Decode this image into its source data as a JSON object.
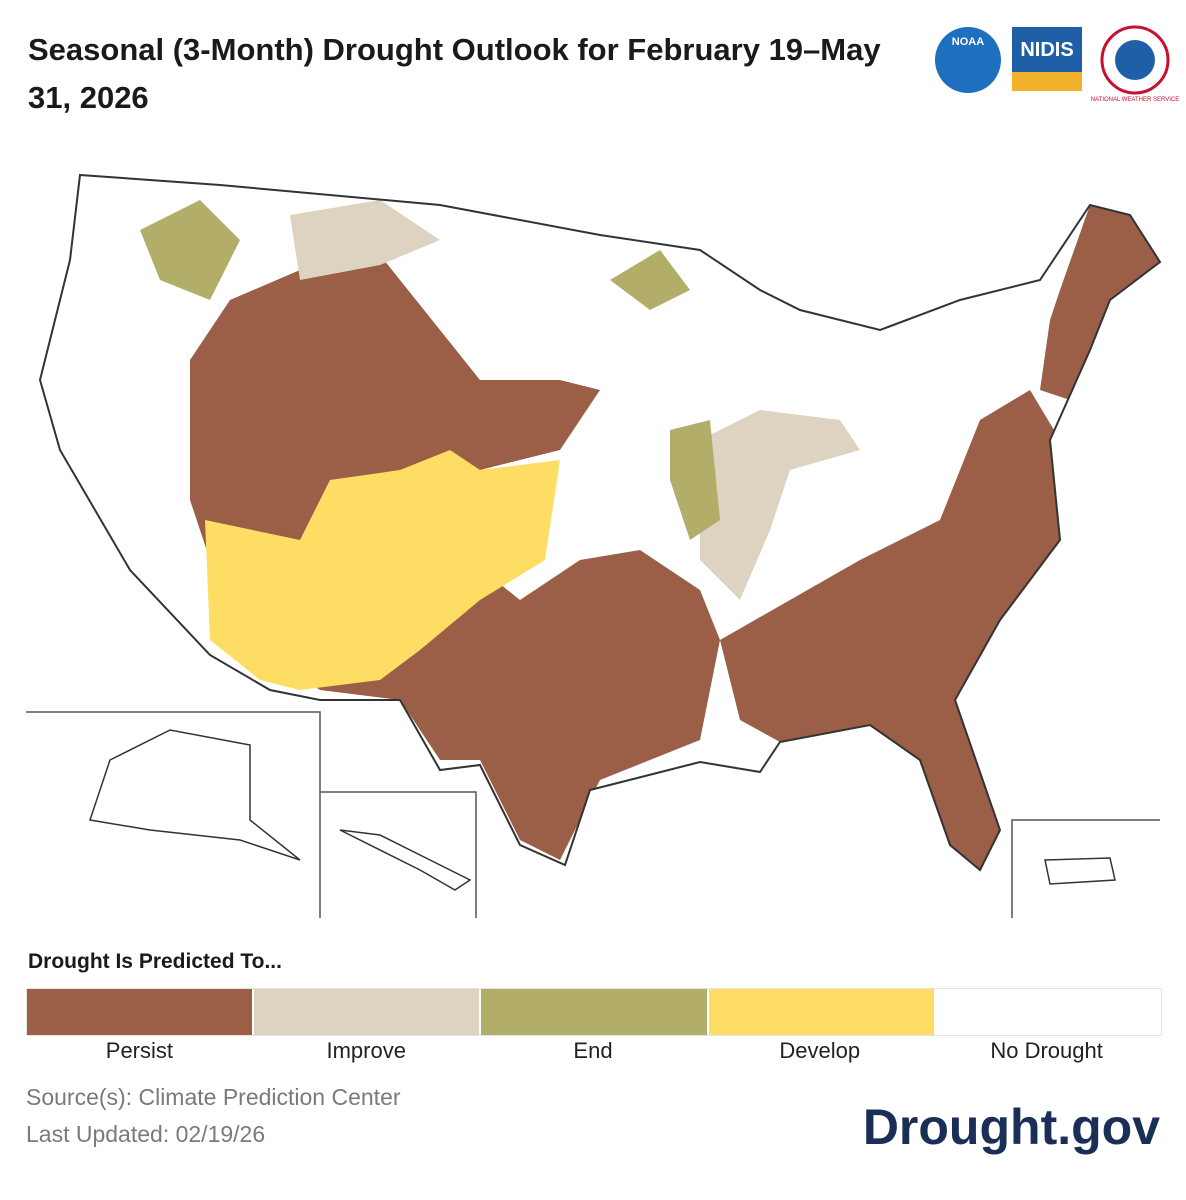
{
  "title": "Seasonal (3-Month) Drought Outlook for February 19–May 31, 2026",
  "logos": [
    "NOAA",
    "NIDIS",
    "NATIONAL WEATHER SERVICE"
  ],
  "legend": {
    "title": "Drought Is Predicted To...",
    "items": [
      {
        "label": "Persist",
        "color": "#9b5f48"
      },
      {
        "label": "Improve",
        "color": "#ddd3c0"
      },
      {
        "label": "End",
        "color": "#b2ae6a"
      },
      {
        "label": "Develop",
        "color": "#fedd64"
      },
      {
        "label": "No Drought",
        "color": "#ffffff"
      }
    ]
  },
  "source": "Source(s): Climate Prediction Center",
  "updated": "Last Updated: 02/19/26",
  "brand": "Drought.gov"
}
